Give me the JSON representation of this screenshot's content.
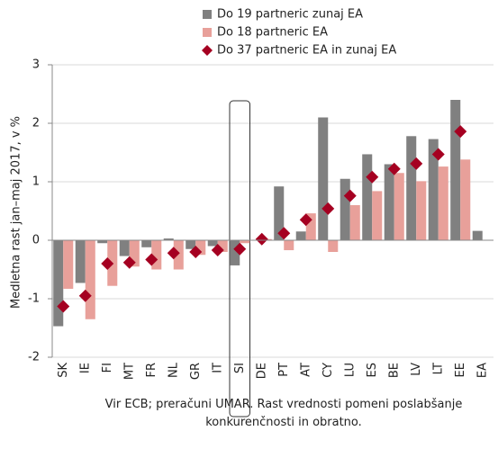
{
  "chart_data": {
    "type": "bar",
    "y_label": "Medletna rast jan–maj 2017, v %",
    "categories": [
      "SK",
      "IE",
      "FI",
      "MT",
      "FR",
      "NL",
      "GR",
      "IT",
      "SI",
      "DE",
      "PT",
      "AT",
      "CY",
      "LU",
      "ES",
      "BE",
      "LV",
      "LT",
      "EE",
      "EA"
    ],
    "series": [
      {
        "name": "Do 19 partneric zunaj EA",
        "color": "#808080",
        "kind": "bar",
        "values": [
          -1.47,
          -0.73,
          -0.05,
          -0.27,
          -0.12,
          0.03,
          -0.15,
          -0.1,
          -0.43,
          0,
          0.92,
          0.15,
          2.1,
          1.05,
          1.47,
          1.3,
          1.78,
          1.73,
          2.4,
          0.16
        ]
      },
      {
        "name": "Do 18 partneric EA",
        "color": "#e8a09a",
        "kind": "bar",
        "values": [
          -0.83,
          -1.35,
          -0.78,
          -0.45,
          -0.5,
          -0.5,
          -0.25,
          -0.2,
          -0.05,
          0.02,
          -0.17,
          0.46,
          -0.2,
          0.6,
          0.84,
          1.15,
          1.01,
          1.26,
          1.38,
          null
        ]
      },
      {
        "name": "Do 37 partneric EA in zunaj EA",
        "color": "#a50021",
        "kind": "diamond",
        "values": [
          -1.13,
          -0.95,
          -0.4,
          -0.38,
          -0.33,
          -0.22,
          -0.2,
          -0.17,
          -0.15,
          0.02,
          0.12,
          0.35,
          0.54,
          0.76,
          1.08,
          1.22,
          1.31,
          1.47,
          1.86,
          null
        ]
      }
    ],
    "ylim": [
      -2,
      3
    ],
    "yticks": [
      -2,
      -1,
      0,
      1,
      2,
      3
    ],
    "grid": true,
    "highlight": "SI",
    "note": [
      "Vir ECB; preračuni UMAR. Rast vrednosti pomeni poslabšanje",
      "konkurenčnosti in obratno."
    ]
  }
}
